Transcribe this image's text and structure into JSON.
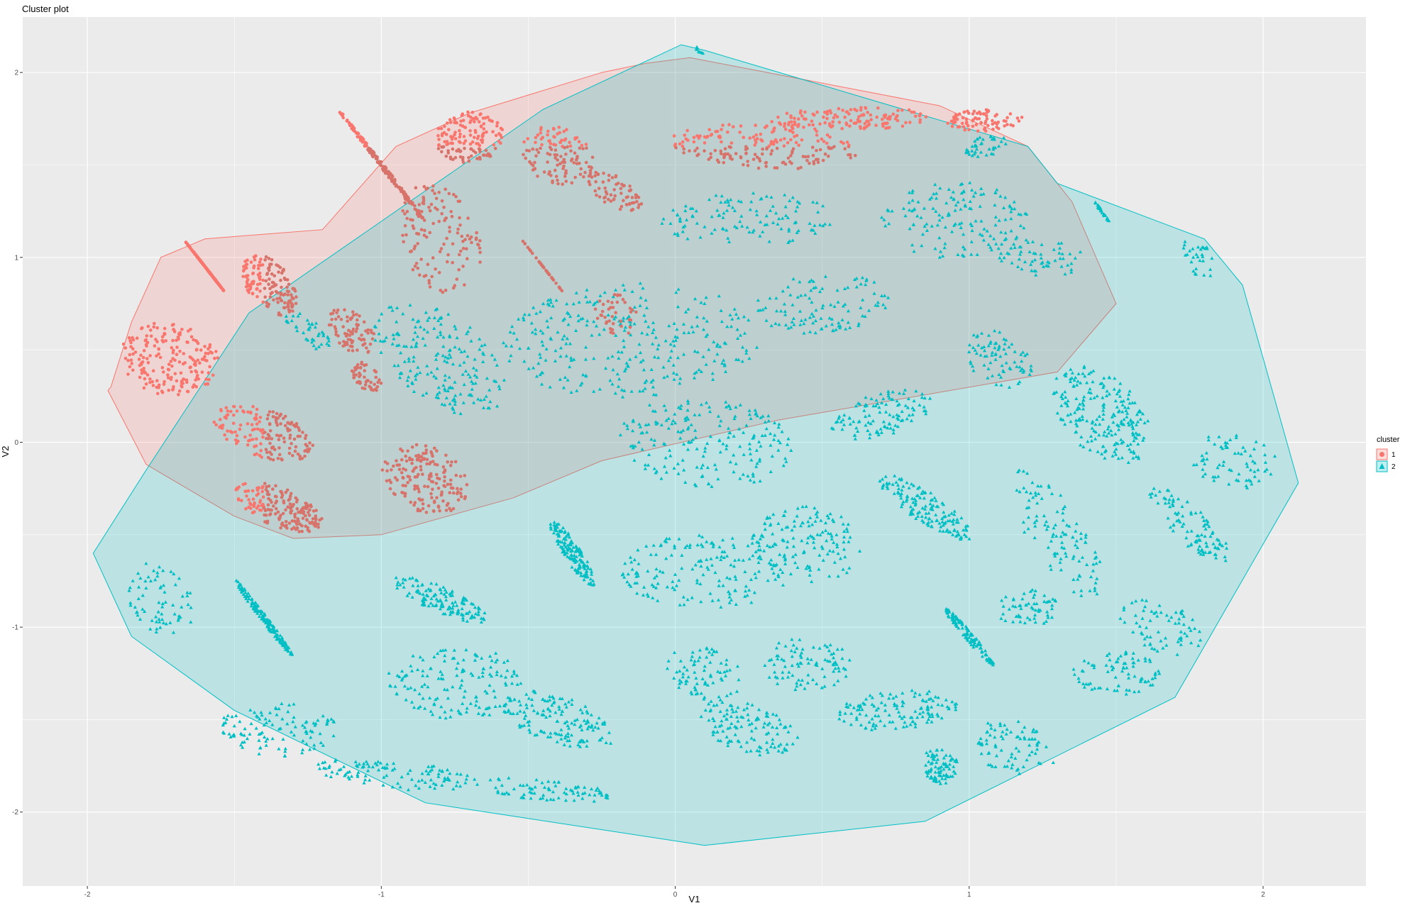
{
  "chart_data": {
    "type": "scatter",
    "title": "Cluster plot",
    "xlabel": "V1",
    "ylabel": "V2",
    "xlim": [
      -2.22,
      2.35
    ],
    "ylim": [
      -2.4,
      2.3
    ],
    "x_ticks": [
      -2,
      -1,
      0,
      1,
      2
    ],
    "x_tick_labels": [
      "-2",
      "-1",
      "0",
      "1",
      "2"
    ],
    "y_ticks": [
      -2,
      -1,
      0,
      1,
      2
    ],
    "y_tick_labels": [
      "-2",
      "-1",
      "0",
      "1",
      "2"
    ],
    "grid": true,
    "legend": {
      "title": "cluster",
      "position": "right",
      "entries": [
        {
          "label": "1",
          "shape": "circle",
          "color": "#F8766D"
        },
        {
          "label": "2",
          "shape": "triangle",
          "color": "#00BFC4"
        }
      ]
    },
    "clusters": [
      {
        "id": "1",
        "color": "#F8766D",
        "shape": "circle",
        "hull": [
          [
            -1.92,
            0.3
          ],
          [
            -1.85,
            0.65
          ],
          [
            -1.75,
            1.0
          ],
          [
            -1.6,
            1.1
          ],
          [
            -1.2,
            1.15
          ],
          [
            -0.95,
            1.6
          ],
          [
            -0.7,
            1.78
          ],
          [
            -0.25,
            2.0
          ],
          [
            -0.1,
            2.05
          ],
          [
            0.05,
            2.08
          ],
          [
            0.15,
            2.05
          ],
          [
            0.9,
            1.82
          ],
          [
            1.2,
            1.6
          ],
          [
            1.35,
            1.3
          ],
          [
            1.5,
            0.75
          ],
          [
            1.3,
            0.38
          ],
          [
            0.35,
            0.12
          ],
          [
            -0.25,
            -0.1
          ],
          [
            -0.55,
            -0.3
          ],
          [
            -1.0,
            -0.5
          ],
          [
            -1.3,
            -0.52
          ],
          [
            -1.5,
            -0.4
          ],
          [
            -1.8,
            -0.12
          ],
          [
            -1.93,
            0.28
          ]
        ],
        "regions": [
          {
            "cx": -1.6,
            "cy": 0.95,
            "rx": 0.22,
            "ry": 0.12,
            "n": 170
          },
          {
            "cx": -1.38,
            "cy": 0.85,
            "rx": 0.22,
            "ry": 0.15,
            "n": 150
          },
          {
            "cx": -1.72,
            "cy": 0.45,
            "rx": 0.17,
            "ry": 0.2,
            "n": 200
          },
          {
            "cx": -1.0,
            "cy": 1.5,
            "rx": 0.1,
            "ry": 0.3,
            "n": 160
          },
          {
            "cx": -0.7,
            "cy": 1.65,
            "rx": 0.25,
            "ry": 0.12,
            "n": 150
          },
          {
            "cx": -0.8,
            "cy": 1.1,
            "rx": 0.14,
            "ry": 0.3,
            "n": 130
          },
          {
            "cx": -0.4,
            "cy": 1.55,
            "rx": 0.22,
            "ry": 0.15,
            "n": 120
          },
          {
            "cx": -0.2,
            "cy": 1.35,
            "rx": 0.12,
            "ry": 0.12,
            "n": 70
          },
          {
            "cx": 0.3,
            "cy": 1.6,
            "rx": 0.33,
            "ry": 0.12,
            "n": 190
          },
          {
            "cx": 0.6,
            "cy": 1.75,
            "rx": 0.28,
            "ry": 0.06,
            "n": 130
          },
          {
            "cx": 1.05,
            "cy": 1.74,
            "rx": 0.14,
            "ry": 0.06,
            "n": 80
          },
          {
            "cx": -1.4,
            "cy": 0.05,
            "rx": 0.2,
            "ry": 0.15,
            "n": 170
          },
          {
            "cx": -1.35,
            "cy": -0.35,
            "rx": 0.2,
            "ry": 0.13,
            "n": 190
          },
          {
            "cx": -0.85,
            "cy": -0.2,
            "rx": 0.22,
            "ry": 0.18,
            "n": 170
          },
          {
            "cx": -1.1,
            "cy": 0.6,
            "rx": 0.15,
            "ry": 0.12,
            "n": 80
          },
          {
            "cx": -0.45,
            "cy": 0.95,
            "rx": 0.06,
            "ry": 0.18,
            "n": 40
          },
          {
            "cx": -0.2,
            "cy": 0.7,
            "rx": 0.08,
            "ry": 0.12,
            "n": 40
          },
          {
            "cx": -1.05,
            "cy": 0.35,
            "rx": 0.12,
            "ry": 0.08,
            "n": 50
          }
        ]
      },
      {
        "id": "2",
        "color": "#00BFC4",
        "shape": "triangle",
        "hull": [
          [
            -1.8,
            -0.15
          ],
          [
            -1.45,
            0.7
          ],
          [
            -0.45,
            1.8
          ],
          [
            0.02,
            2.15
          ],
          [
            0.1,
            2.12
          ],
          [
            1.2,
            1.6
          ],
          [
            1.3,
            1.4
          ],
          [
            1.55,
            1.25
          ],
          [
            1.8,
            1.1
          ],
          [
            1.93,
            0.85
          ],
          [
            2.12,
            -0.22
          ],
          [
            1.7,
            -1.38
          ],
          [
            0.85,
            -2.05
          ],
          [
            0.1,
            -2.18
          ],
          [
            -0.85,
            -1.95
          ],
          [
            -1.5,
            -1.45
          ],
          [
            -1.85,
            -1.05
          ],
          [
            -1.98,
            -0.6
          ],
          [
            -1.8,
            -0.15
          ]
        ],
        "regions": [
          {
            "cx": 0.25,
            "cy": 1.2,
            "rx": 0.3,
            "ry": 0.15,
            "n": 120
          },
          {
            "cx": 0.95,
            "cy": 1.2,
            "rx": 0.3,
            "ry": 0.2,
            "n": 150
          },
          {
            "cx": 1.25,
            "cy": 1.0,
            "rx": 0.15,
            "ry": 0.1,
            "n": 60
          },
          {
            "cx": 0.5,
            "cy": 0.75,
            "rx": 0.3,
            "ry": 0.15,
            "n": 110
          },
          {
            "cx": 1.1,
            "cy": 0.45,
            "rx": 0.2,
            "ry": 0.15,
            "n": 80
          },
          {
            "cx": -0.15,
            "cy": 0.55,
            "rx": 0.5,
            "ry": 0.3,
            "n": 300
          },
          {
            "cx": -0.8,
            "cy": 0.45,
            "rx": 0.25,
            "ry": 0.3,
            "n": 200
          },
          {
            "cx": -1.25,
            "cy": 0.6,
            "rx": 0.1,
            "ry": 0.1,
            "n": 40
          },
          {
            "cx": 0.1,
            "cy": 0.0,
            "rx": 0.3,
            "ry": 0.25,
            "n": 200
          },
          {
            "cx": 0.7,
            "cy": 0.15,
            "rx": 0.35,
            "ry": 0.1,
            "n": 110
          },
          {
            "cx": 1.45,
            "cy": 0.15,
            "rx": 0.3,
            "ry": 0.25,
            "n": 220
          },
          {
            "cx": 1.9,
            "cy": -0.1,
            "rx": 0.15,
            "ry": 0.15,
            "n": 70
          },
          {
            "cx": 1.75,
            "cy": -0.45,
            "rx": 0.2,
            "ry": 0.2,
            "n": 100
          },
          {
            "cx": 1.3,
            "cy": -0.5,
            "rx": 0.15,
            "ry": 0.35,
            "n": 110
          },
          {
            "cx": 0.85,
            "cy": -0.35,
            "rx": 0.35,
            "ry": 0.15,
            "n": 150
          },
          {
            "cx": 0.45,
            "cy": -0.55,
            "rx": 0.25,
            "ry": 0.2,
            "n": 140
          },
          {
            "cx": 0.1,
            "cy": -0.7,
            "rx": 0.3,
            "ry": 0.2,
            "n": 170
          },
          {
            "cx": -0.35,
            "cy": -0.6,
            "rx": 0.3,
            "ry": 0.15,
            "n": 150
          },
          {
            "cx": -0.8,
            "cy": -0.85,
            "rx": 0.3,
            "ry": 0.1,
            "n": 130
          },
          {
            "cx": -1.4,
            "cy": -0.95,
            "rx": 0.25,
            "ry": 0.2,
            "n": 160
          },
          {
            "cx": -1.75,
            "cy": -0.85,
            "rx": 0.12,
            "ry": 0.2,
            "n": 70
          },
          {
            "cx": -0.75,
            "cy": -1.3,
            "rx": 0.25,
            "ry": 0.2,
            "n": 150
          },
          {
            "cx": -0.4,
            "cy": -1.5,
            "rx": 0.25,
            "ry": 0.15,
            "n": 150
          },
          {
            "cx": -1.35,
            "cy": -1.55,
            "rx": 0.2,
            "ry": 0.15,
            "n": 110
          },
          {
            "cx": -0.95,
            "cy": -1.8,
            "rx": 0.3,
            "ry": 0.08,
            "n": 110
          },
          {
            "cx": -0.45,
            "cy": -1.88,
            "rx": 0.25,
            "ry": 0.06,
            "n": 80
          },
          {
            "cx": 0.25,
            "cy": -1.55,
            "rx": 0.2,
            "ry": 0.15,
            "n": 120
          },
          {
            "cx": 0.1,
            "cy": -1.25,
            "rx": 0.15,
            "ry": 0.15,
            "n": 80
          },
          {
            "cx": 0.45,
            "cy": -1.2,
            "rx": 0.15,
            "ry": 0.15,
            "n": 90
          },
          {
            "cx": 0.75,
            "cy": -1.45,
            "rx": 0.25,
            "ry": 0.1,
            "n": 130
          },
          {
            "cx": 1.0,
            "cy": -1.05,
            "rx": 0.2,
            "ry": 0.15,
            "n": 110
          },
          {
            "cx": 1.15,
            "cy": -1.65,
            "rx": 0.15,
            "ry": 0.15,
            "n": 80
          },
          {
            "cx": 0.9,
            "cy": -1.75,
            "rx": 0.2,
            "ry": 0.08,
            "n": 80
          },
          {
            "cx": 1.5,
            "cy": -1.25,
            "rx": 0.15,
            "ry": 0.12,
            "n": 80
          },
          {
            "cx": 1.65,
            "cy": -1.0,
            "rx": 0.15,
            "ry": 0.15,
            "n": 70
          },
          {
            "cx": 1.2,
            "cy": -0.9,
            "rx": 0.15,
            "ry": 0.1,
            "n": 60
          },
          {
            "cx": 0.08,
            "cy": 2.12,
            "rx": 0.03,
            "ry": 0.02,
            "n": 10
          },
          {
            "cx": 1.45,
            "cy": 1.25,
            "rx": 0.1,
            "ry": 0.05,
            "n": 30
          },
          {
            "cx": 1.78,
            "cy": 1.0,
            "rx": 0.05,
            "ry": 0.12,
            "n": 30
          },
          {
            "cx": 1.05,
            "cy": 1.6,
            "rx": 0.15,
            "ry": 0.05,
            "n": 40
          }
        ]
      }
    ]
  }
}
